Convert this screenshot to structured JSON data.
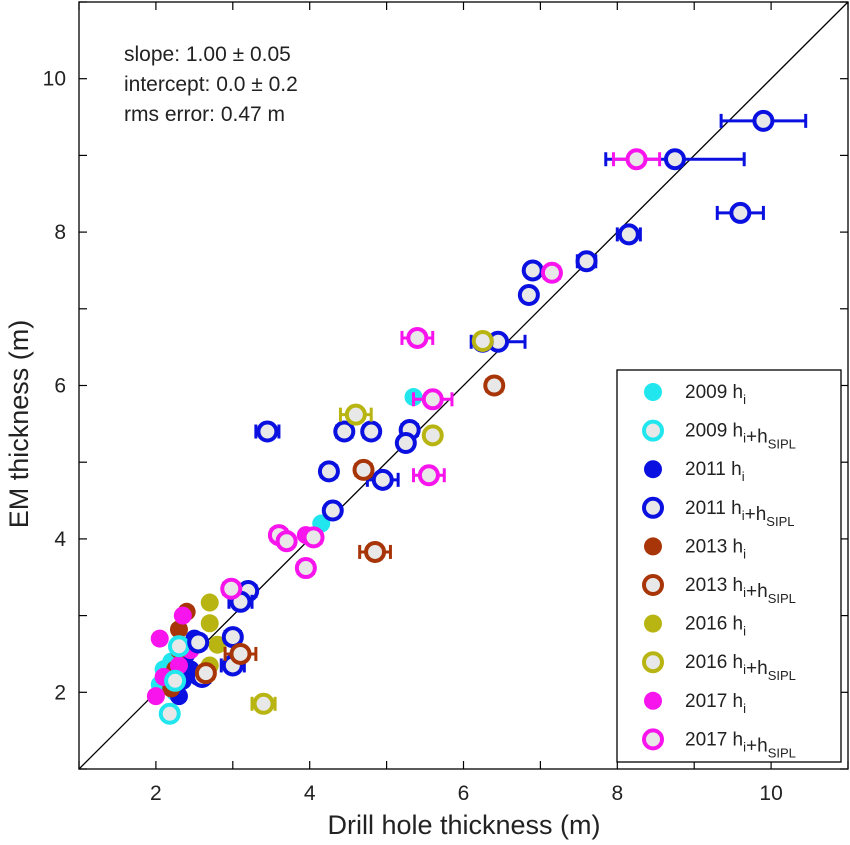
{
  "chart_data": {
    "type": "scatter",
    "xlabel": "Drill hole thickness (m)",
    "ylabel": "EM thickness (m)",
    "xlim": [
      1,
      11
    ],
    "ylim": [
      1,
      11
    ],
    "x_ticks": [
      2,
      4,
      6,
      8,
      10
    ],
    "y_ticks": [
      2,
      4,
      6,
      8,
      10
    ],
    "grid": false,
    "legend_position": "bottom-right",
    "reference_line": "1:1",
    "annotations": [
      "slope: 1.00 ± 0.05",
      "intercept: 0.0 ± 0.2",
      "rms error: 0.47 m"
    ],
    "series": [
      {
        "name": "2009 h_i",
        "color": "#22e6ee",
        "marker": "filled",
        "points": [
          [
            2.05,
            2.1
          ],
          [
            2.1,
            2.3
          ],
          [
            2.15,
            2.2
          ],
          [
            2.2,
            2.4
          ],
          [
            2.25,
            2.0
          ],
          [
            4.15,
            4.2
          ],
          [
            5.35,
            5.85
          ]
        ]
      },
      {
        "name": "2009 h_i+h_SIPL",
        "color": "#22e6ee",
        "marker": "open",
        "points": [
          [
            2.18,
            1.72
          ],
          [
            2.3,
            2.6
          ],
          [
            2.25,
            2.15
          ]
        ]
      },
      {
        "name": "2011 h_i",
        "color": "#0a10e0",
        "marker": "filled",
        "points": [
          [
            2.3,
            1.95
          ],
          [
            2.35,
            2.15
          ],
          [
            2.4,
            2.5
          ],
          [
            2.45,
            2.3
          ],
          [
            2.5,
            2.7
          ],
          [
            2.25,
            2.05
          ],
          [
            2.55,
            2.2
          ]
        ]
      },
      {
        "name": "2011 h_i+h_SIPL",
        "color": "#0a10e0",
        "marker": "open",
        "points": [
          [
            9.9,
            9.45,
            0.55
          ],
          [
            8.75,
            8.95,
            0.9
          ],
          [
            9.6,
            8.25,
            0.3
          ],
          [
            8.15,
            7.97,
            0.15
          ],
          [
            7.6,
            7.62,
            0.12
          ],
          [
            6.9,
            7.5,
            0
          ],
          [
            6.85,
            7.18,
            0
          ],
          [
            6.45,
            6.57,
            0.35
          ],
          [
            6.25,
            6.57,
            0
          ],
          [
            3.45,
            5.4,
            0.15
          ],
          [
            4.45,
            5.4,
            0.1
          ],
          [
            4.8,
            5.4,
            0.1
          ],
          [
            5.3,
            5.42,
            0.1
          ],
          [
            5.25,
            5.25,
            0
          ],
          [
            4.25,
            4.88,
            0.1
          ],
          [
            4.95,
            4.77,
            0.2
          ],
          [
            4.3,
            4.37,
            0
          ],
          [
            3.2,
            3.32,
            0.1
          ],
          [
            3.1,
            3.18,
            0.15
          ],
          [
            3.0,
            2.72,
            0.1
          ],
          [
            2.55,
            2.65,
            0.1
          ],
          [
            3.0,
            2.35,
            0.15
          ],
          [
            2.6,
            2.2,
            0.1
          ]
        ]
      },
      {
        "name": "2013 h_i",
        "color": "#a83508",
        "marker": "filled",
        "points": [
          [
            2.4,
            3.05
          ],
          [
            2.3,
            2.82
          ],
          [
            2.3,
            2.55
          ],
          [
            2.2,
            2.05
          ],
          [
            2.25,
            2.3
          ]
        ]
      },
      {
        "name": "2013 h_i+h_SIPL",
        "color": "#a83508",
        "marker": "open",
        "points": [
          [
            6.4,
            6.0,
            0.1
          ],
          [
            4.7,
            4.9,
            0.1
          ],
          [
            4.85,
            3.83,
            0.2
          ],
          [
            3.1,
            2.5,
            0.2
          ],
          [
            2.65,
            2.25,
            0.1
          ]
        ]
      },
      {
        "name": "2016 h_i",
        "color": "#b8b512",
        "marker": "filled",
        "points": [
          [
            2.7,
            3.17
          ],
          [
            2.7,
            2.9
          ],
          [
            2.8,
            2.62
          ],
          [
            2.7,
            2.35
          ]
        ]
      },
      {
        "name": "2016 h_i+h_SIPL",
        "color": "#b8b512",
        "marker": "open",
        "points": [
          [
            6.25,
            6.58,
            0
          ],
          [
            4.6,
            5.62,
            0.2
          ],
          [
            5.6,
            5.35,
            0
          ],
          [
            3.4,
            1.85,
            0.15
          ]
        ]
      },
      {
        "name": "2017 h_i",
        "color": "#f814ec",
        "marker": "filled",
        "points": [
          [
            2.05,
            2.7
          ],
          [
            2.35,
            3.0
          ],
          [
            2.3,
            2.35
          ],
          [
            2.1,
            2.2
          ],
          [
            2.0,
            1.95
          ],
          [
            3.95,
            4.05
          ],
          [
            3.7,
            4.0
          ],
          [
            2.45,
            2.55
          ]
        ]
      },
      {
        "name": "2017 h_i+h_SIPL",
        "color": "#f814ec",
        "marker": "open",
        "points": [
          [
            8.25,
            8.95,
            0.3
          ],
          [
            7.15,
            7.47,
            0.1
          ],
          [
            5.4,
            6.62,
            0.2
          ],
          [
            5.6,
            5.82,
            0.25
          ],
          [
            5.55,
            4.83,
            0.2
          ],
          [
            3.6,
            4.05,
            0.1
          ],
          [
            3.95,
            3.62,
            0.1
          ],
          [
            3.7,
            3.97,
            0
          ],
          [
            4.05,
            4.02,
            0.1
          ],
          [
            2.98,
            3.35,
            0.1
          ]
        ]
      }
    ]
  }
}
